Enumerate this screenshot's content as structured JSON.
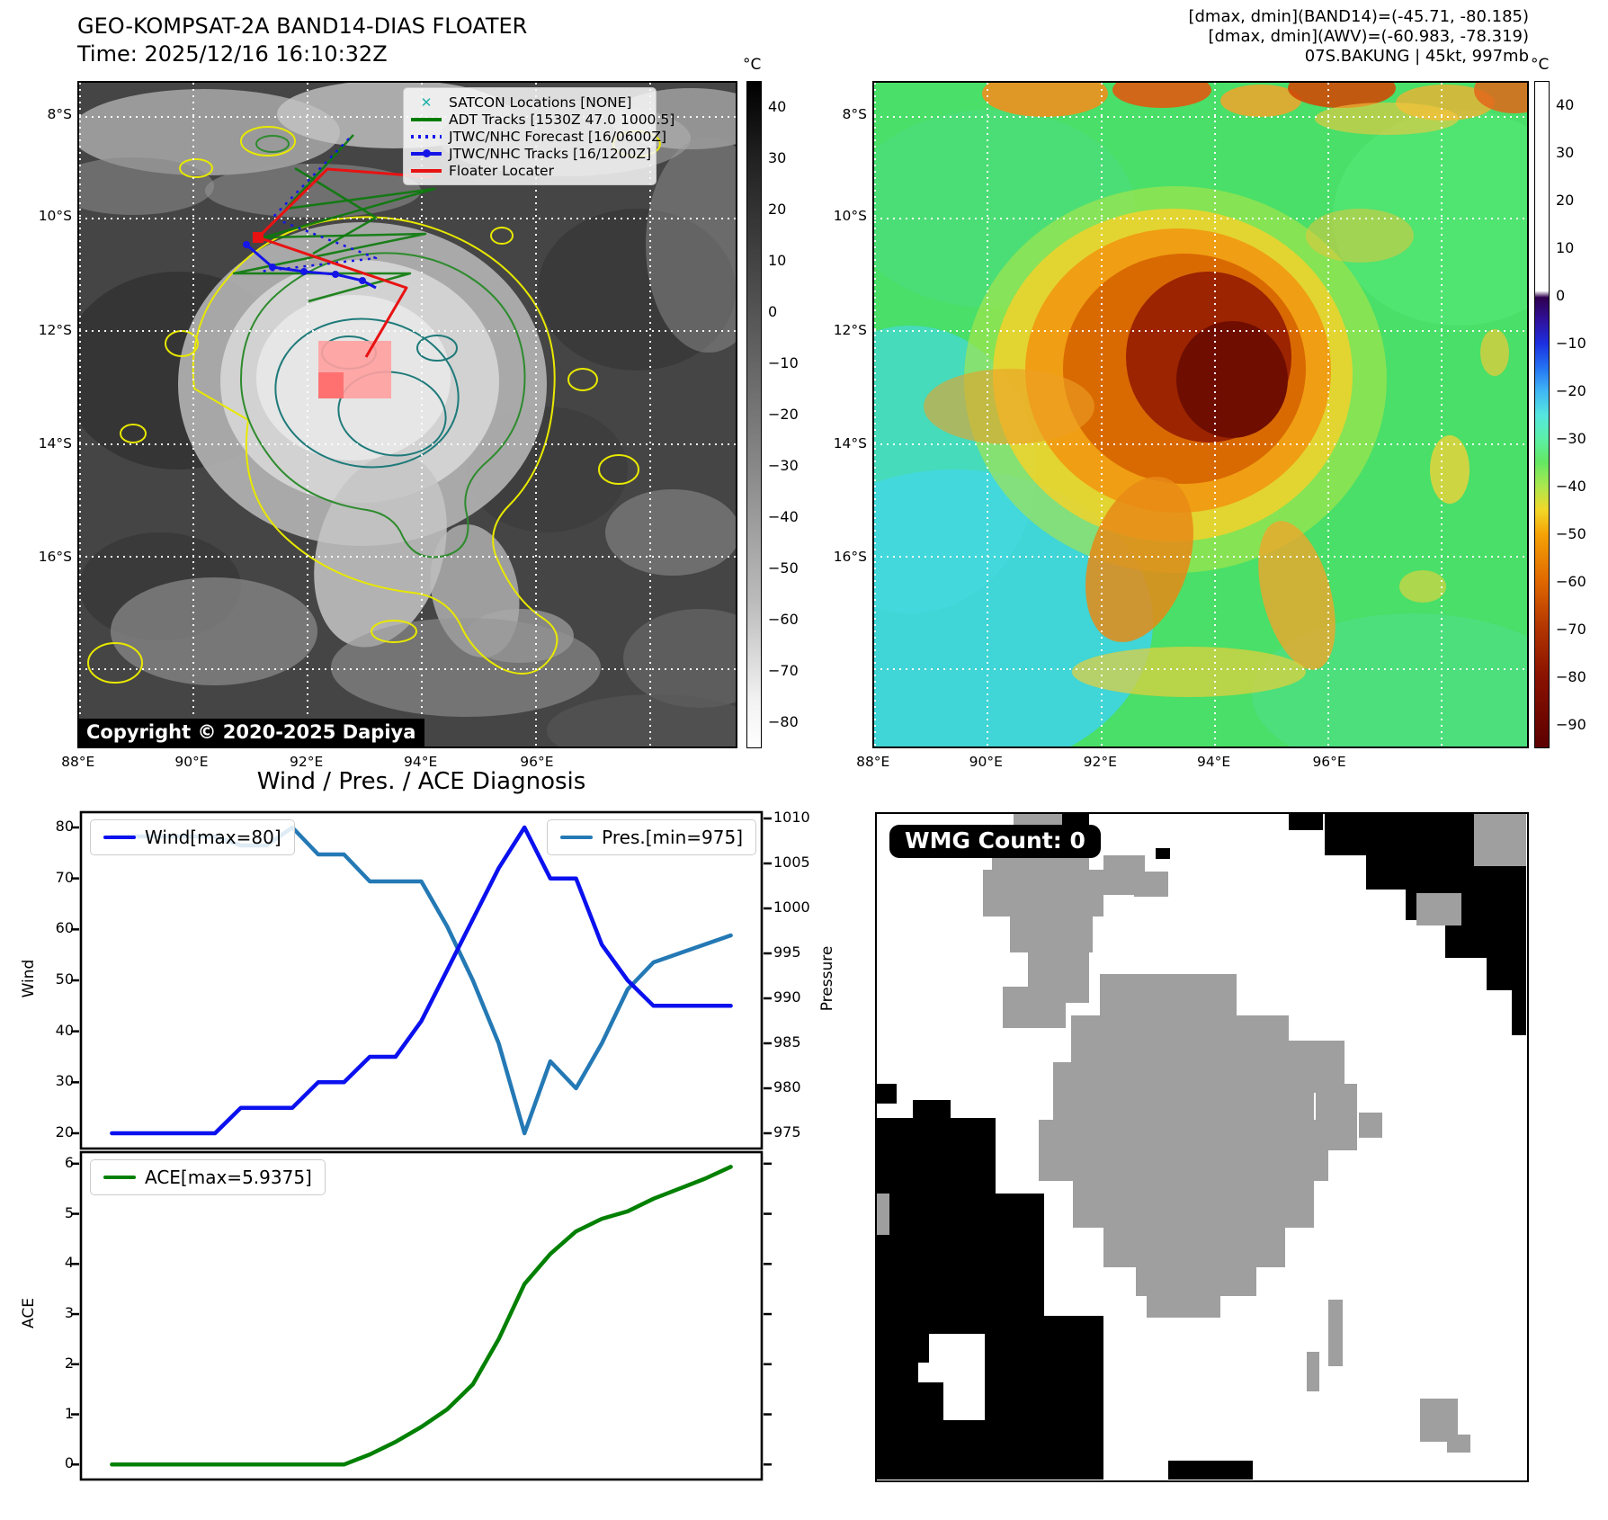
{
  "header_left": {
    "title": "GEO-KOMPSAT-2A BAND14-DIAS FLOATER",
    "time": "Time: 2025/12/16 16:10:32Z"
  },
  "header_right": {
    "line1": "[dmax, dmin](BAND14)=(-45.71, -80.185)",
    "line2": "[dmax, dmin](AWV)=(-60.983, -78.319)",
    "line3": "07S.BAKUNG | 45kt, 997mb"
  },
  "map_left": {
    "legend": [
      {
        "label": "SATCON Locations [NONE]",
        "marker": "x",
        "color": "#20b2aa"
      },
      {
        "label": "ADT Tracks [1530Z 47.0 1000.5]",
        "marker": "line",
        "color": "#007d00"
      },
      {
        "label": "JTWC/NHC Forecast [16/0600Z]",
        "marker": "dotted",
        "color": "#1515e8"
      },
      {
        "label": "JTWC/NHC Tracks [16/1200Z]",
        "marker": "line-dot",
        "color": "#1515e8"
      },
      {
        "label": "Floater Locater",
        "marker": "line",
        "color": "#e81212"
      }
    ],
    "copyright": "Copyright © 2020-2025 Dapiya",
    "lat_ticks": [
      "8°S",
      "10°S",
      "12°S",
      "14°S",
      "16°S"
    ],
    "lon_ticks": [
      "88°E",
      "90°E",
      "92°E",
      "94°E",
      "96°E"
    ]
  },
  "map_right": {
    "lat_ticks": [
      "8°S",
      "10°S",
      "12°S",
      "14°S",
      "16°S"
    ],
    "lon_ticks": [
      "88°E",
      "90°E",
      "92°E",
      "94°E",
      "96°E"
    ]
  },
  "colorbar_left": {
    "unit": "°C",
    "vmax": 45,
    "vmin": -85,
    "ticks": [
      40,
      30,
      20,
      10,
      0,
      -10,
      -20,
      -30,
      -40,
      -50,
      -60,
      -70,
      -80
    ]
  },
  "colorbar_right": {
    "unit": "°C",
    "vmax": 45,
    "vmin": -95,
    "ticks": [
      40,
      30,
      20,
      10,
      0,
      -10,
      -20,
      -30,
      -40,
      -50,
      -60,
      -70,
      -80,
      -90
    ]
  },
  "wmg": {
    "count_label": "WMG Count: 0"
  },
  "chart_data": [
    {
      "type": "line",
      "title": "Wind / Pres. / ACE Diagnosis",
      "ylabel_left": "Wind",
      "ylabel_right": "Pressure",
      "x": [
        0,
        1,
        2,
        3,
        4,
        5,
        6,
        7,
        8,
        9,
        10,
        11,
        12,
        13,
        14,
        15,
        16,
        17,
        18,
        19,
        20,
        21,
        22,
        23,
        24
      ],
      "xlim": [
        -1.2,
        25.2
      ],
      "ylim_left": [
        17,
        83
      ],
      "ylim_right": [
        973.3,
        1010.7
      ],
      "yticks_left": [
        20,
        30,
        40,
        50,
        60,
        70,
        80
      ],
      "yticks_right": [
        975,
        980,
        985,
        990,
        995,
        1000,
        1005,
        1010
      ],
      "legend_position": "upper-left / upper-right",
      "grid": false,
      "series": [
        {
          "name": "Wind[max=80]",
          "color": "#0a10ee",
          "axis": "left",
          "values": [
            20,
            20,
            20,
            20,
            20,
            25,
            25,
            25,
            30,
            30,
            35,
            35,
            42,
            52,
            62,
            72,
            80,
            70,
            70,
            57,
            50,
            45,
            45,
            45,
            45
          ]
        },
        {
          "name": "Pres.[min=975]",
          "color": "#2479b5",
          "axis": "right",
          "values": [
            1008,
            1008,
            1008,
            1008,
            1008,
            1007,
            1007,
            1009,
            1006,
            1006,
            1003,
            1003,
            1003,
            998,
            992,
            985,
            975,
            983,
            980,
            985,
            991,
            994,
            995,
            996,
            997
          ]
        }
      ]
    },
    {
      "type": "line",
      "ylabel": "ACE",
      "x": [
        0,
        1,
        2,
        3,
        4,
        5,
        6,
        7,
        8,
        9,
        10,
        11,
        12,
        13,
        14,
        15,
        16,
        17,
        18,
        19,
        20,
        21,
        22,
        23,
        24
      ],
      "xlim": [
        -1.2,
        25.2
      ],
      "ylim": [
        -0.3,
        6.23
      ],
      "yticks": [
        0,
        1,
        2,
        3,
        4,
        5,
        6
      ],
      "legend_position": "upper-left",
      "grid": false,
      "series": [
        {
          "name": "ACE[max=5.9375]",
          "color": "#008000",
          "values": [
            0,
            0,
            0,
            0,
            0,
            0,
            0,
            0,
            0,
            0,
            0.2,
            0.45,
            0.75,
            1.1,
            1.6,
            2.5,
            3.6,
            4.2,
            4.65,
            4.9,
            5.05,
            5.3,
            5.5,
            5.7,
            5.9375
          ]
        }
      ]
    }
  ]
}
